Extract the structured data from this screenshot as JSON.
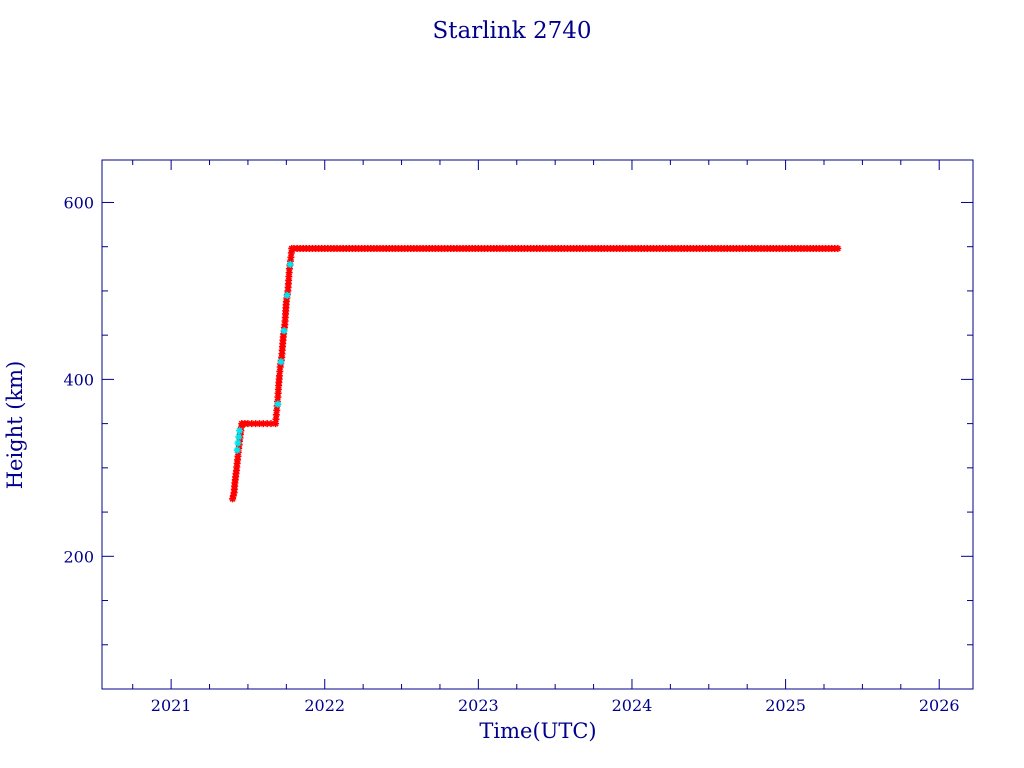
{
  "colors": {
    "axis": "#00008b",
    "text": "#00008b",
    "series_red": "#ff0000",
    "series_cyan": "#00e5ee",
    "background": "#ffffff"
  },
  "chart_data": {
    "type": "scatter",
    "title": "Starlink 2740",
    "xlabel": "Time(UTC)",
    "ylabel": "Height (km)",
    "xlim": [
      2020.55,
      2026.22
    ],
    "ylim": [
      50,
      648
    ],
    "xticks": [
      2021,
      2022,
      2023,
      2024,
      2025,
      2026
    ],
    "yticks": [
      200,
      400,
      600
    ],
    "grid": false,
    "marker": "asterisk",
    "series": [
      {
        "color": "red",
        "points": [
          [
            2021.4,
            265
          ],
          [
            2021.41,
            272
          ],
          [
            2021.415,
            283
          ],
          [
            2021.42,
            290
          ],
          [
            2021.425,
            297
          ],
          [
            2021.43,
            305
          ],
          [
            2021.435,
            313
          ],
          [
            2021.44,
            322
          ],
          [
            2021.445,
            330
          ],
          [
            2021.46,
            350
          ],
          [
            2021.5,
            350
          ],
          [
            2021.55,
            350
          ],
          [
            2021.6,
            350
          ],
          [
            2021.65,
            350
          ],
          [
            2021.68,
            350
          ],
          [
            2021.685,
            360
          ],
          [
            2021.69,
            370
          ],
          [
            2021.695,
            380
          ],
          [
            2021.7,
            393
          ],
          [
            2021.705,
            404
          ],
          [
            2021.71,
            414
          ],
          [
            2021.72,
            425
          ],
          [
            2021.725,
            437
          ],
          [
            2021.73,
            448
          ],
          [
            2021.74,
            462
          ],
          [
            2021.745,
            474
          ],
          [
            2021.75,
            488
          ],
          [
            2021.76,
            500
          ],
          [
            2021.765,
            512
          ],
          [
            2021.77,
            525
          ],
          [
            2021.78,
            538
          ],
          [
            2021.785,
            548
          ],
          [
            2021.8,
            548
          ],
          [
            2022.0,
            548
          ],
          [
            2022.5,
            548
          ],
          [
            2023.0,
            548
          ],
          [
            2023.5,
            548
          ],
          [
            2024.0,
            548
          ],
          [
            2024.5,
            548
          ],
          [
            2025.0,
            548
          ],
          [
            2025.34,
            548
          ]
        ]
      },
      {
        "color": "cyan",
        "points": [
          [
            2021.43,
            320
          ],
          [
            2021.435,
            328
          ],
          [
            2021.44,
            335
          ],
          [
            2021.445,
            342
          ],
          [
            2021.695,
            372
          ],
          [
            2021.715,
            420
          ],
          [
            2021.735,
            455
          ],
          [
            2021.755,
            495
          ],
          [
            2021.775,
            530
          ]
        ]
      }
    ]
  }
}
